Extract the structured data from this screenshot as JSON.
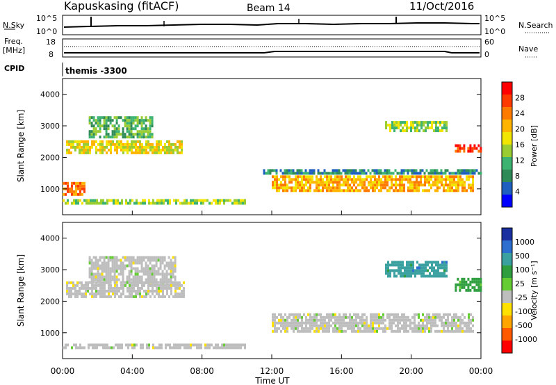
{
  "header": {
    "station": "Kapuskasing (fitACF)",
    "beam": "Beam 14",
    "date": "11/Oct/2016"
  },
  "noise_panel": {
    "left_label": "N.Sky",
    "left_ticks": [
      "10^5",
      "10^0"
    ],
    "right_label": "N.Search",
    "right_ticks": [
      "10^5",
      "10^0"
    ]
  },
  "freq_panel": {
    "left_label_1": "Freq.",
    "left_label_2": "[MHz]",
    "left_ticks": [
      "18",
      "8"
    ],
    "right_label": "Nave",
    "right_ticks": [
      "60",
      "0"
    ],
    "cpid_label": "CPID",
    "cpid_value": "themis -3300"
  },
  "power_colorbar": {
    "label": "Power [dB]",
    "ticks": [
      "28",
      "24",
      "20",
      "16",
      "12",
      "8",
      "4"
    ],
    "colors": [
      "#ff0000",
      "#ff3a00",
      "#ff7b00",
      "#ffb400",
      "#f2e600",
      "#9acd32",
      "#3cb371",
      "#2e8b57",
      "#1f5fbf",
      "#0000ff"
    ]
  },
  "velocity_colorbar": {
    "label": "Velocity [m s⁻¹]",
    "ticks": [
      "1000",
      "500",
      "100",
      "25",
      "-25",
      "-100",
      "-500",
      "-1000"
    ],
    "colors": [
      "#1a2fa0",
      "#2d6fd1",
      "#3aa0a0",
      "#2e9e3e",
      "#66cc33",
      "#bebebe",
      "#ffe100",
      "#ffa500",
      "#ff5a00",
      "#ff0000"
    ]
  },
  "chart_data": [
    {
      "type": "heatmap",
      "name": "power",
      "ylabel": "Slant Range [km]",
      "xlabel": "Time UT",
      "xlim": [
        0,
        24
      ],
      "ylim": [
        180,
        4500
      ],
      "yticks": [
        "4000",
        "3000",
        "2000",
        "1000"
      ],
      "xticks": [
        "00:00",
        "04:00",
        "08:00",
        "12:00",
        "16:00",
        "20:00",
        "00:00"
      ],
      "regions": [
        {
          "t0": 0.0,
          "t1": 1.2,
          "r0": 780,
          "r1": 1150,
          "value": 24
        },
        {
          "t0": 0.0,
          "t1": 10.5,
          "r0": 500,
          "r1": 650,
          "value": 14
        },
        {
          "t0": 0.2,
          "t1": 6.8,
          "r0": 2100,
          "r1": 2500,
          "value": 16
        },
        {
          "t0": 1.5,
          "t1": 5.2,
          "r0": 2600,
          "r1": 3300,
          "value": 12
        },
        {
          "t0": 11.5,
          "t1": 24.0,
          "r0": 1450,
          "r1": 1600,
          "value": 8
        },
        {
          "t0": 12.0,
          "t1": 23.5,
          "r0": 900,
          "r1": 1350,
          "value": 22
        },
        {
          "t0": 18.5,
          "t1": 22.0,
          "r0": 2800,
          "r1": 3150,
          "value": 14
        },
        {
          "t0": 22.5,
          "t1": 24.0,
          "r0": 2150,
          "r1": 2400,
          "value": 26
        }
      ]
    },
    {
      "type": "heatmap",
      "name": "velocity",
      "ylabel": "Slant Range [km]",
      "xlabel": "Time UT",
      "xlim": [
        0,
        24
      ],
      "ylim": [
        180,
        4500
      ],
      "yticks": [
        "4000",
        "3000",
        "2000",
        "1000"
      ],
      "xticks": [
        "00:00",
        "04:00",
        "08:00",
        "12:00",
        "16:00",
        "20:00",
        "00:00"
      ],
      "regions": [
        {
          "t0": 0.0,
          "t1": 10.5,
          "r0": 480,
          "r1": 650,
          "value": 0
        },
        {
          "t0": 0.2,
          "t1": 7.0,
          "r0": 2100,
          "r1": 2550,
          "value": 0
        },
        {
          "t0": 1.5,
          "t1": 6.5,
          "r0": 2550,
          "r1": 3350,
          "value": 0
        },
        {
          "t0": 12.0,
          "t1": 23.5,
          "r0": 1000,
          "r1": 1600,
          "value": 0
        },
        {
          "t0": 18.5,
          "t1": 22.0,
          "r0": 2750,
          "r1": 3200,
          "value": 150
        },
        {
          "t0": 22.5,
          "t1": 24.0,
          "r0": 2300,
          "r1": 2700,
          "value": 60
        }
      ]
    }
  ]
}
